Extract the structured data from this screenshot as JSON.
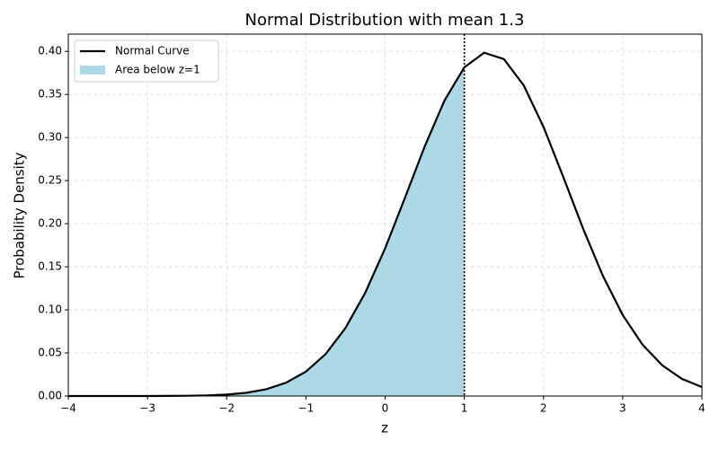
{
  "chart_data": {
    "type": "line",
    "title": "Normal Distribution with mean 1.3",
    "xlabel": "z",
    "ylabel": "Probability Density",
    "xlim": [
      -4,
      4
    ],
    "ylim": [
      0,
      0.42
    ],
    "xticks": [
      {
        "value": -4,
        "label": "−4"
      },
      {
        "value": -3,
        "label": "−3"
      },
      {
        "value": -2,
        "label": "−2"
      },
      {
        "value": -1,
        "label": "−1"
      },
      0,
      1,
      2,
      3,
      4
    ],
    "yticks": [
      {
        "value": 0,
        "label": "0.00"
      },
      {
        "value": 0.05,
        "label": "0.05"
      },
      {
        "value": 0.1,
        "label": "0.10"
      },
      {
        "value": 0.15,
        "label": "0.15"
      },
      {
        "value": 0.2,
        "label": "0.20"
      },
      {
        "value": 0.25,
        "label": "0.25"
      },
      {
        "value": 0.3,
        "label": "0.30"
      },
      {
        "value": 0.35,
        "label": "0.35"
      },
      {
        "value": 0.4,
        "label": "0.40"
      }
    ],
    "grid": true,
    "legend": "upper left",
    "vline_x": 1,
    "series": [
      {
        "name": "Normal Curve",
        "color": "#000000",
        "kind": "line",
        "x": [
          -4,
          -3.75,
          -3.5,
          -3.25,
          -3,
          -2.75,
          -2.5,
          -2.25,
          -2,
          -1.75,
          -1.5,
          -1.25,
          -1,
          -0.75,
          -0.5,
          -0.25,
          0,
          0.25,
          0.5,
          0.75,
          1,
          1.25,
          1.5,
          1.75,
          2,
          2.25,
          2.5,
          2.75,
          3,
          3.25,
          3.5,
          3.75,
          4
        ],
        "values": [
          0.0,
          0.0,
          0.0,
          0.0,
          0.0,
          0.0001,
          0.0003,
          0.0007,
          0.0017,
          0.0038,
          0.0079,
          0.0155,
          0.0283,
          0.0488,
          0.079,
          0.12,
          0.1714,
          0.2299,
          0.2897,
          0.343,
          0.3814,
          0.3984,
          0.391,
          0.3605,
          0.3123,
          0.2541,
          0.1942,
          0.1394,
          0.094,
          0.0596,
          0.0355,
          0.0198,
          0.0104
        ]
      },
      {
        "name": "Area below z=1",
        "color": "#add8e6",
        "kind": "area",
        "x": [
          -4,
          -3.75,
          -3.5,
          -3.25,
          -3,
          -2.75,
          -2.5,
          -2.25,
          -2,
          -1.75,
          -1.5,
          -1.25,
          -1,
          -0.75,
          -0.5,
          -0.25,
          0,
          0.25,
          0.5,
          0.75,
          1
        ],
        "values": [
          0.0,
          0.0,
          0.0,
          0.0,
          0.0,
          0.0001,
          0.0003,
          0.0007,
          0.0017,
          0.0038,
          0.0079,
          0.0155,
          0.0283,
          0.0488,
          0.079,
          0.12,
          0.1714,
          0.2299,
          0.2897,
          0.343,
          0.3814
        ]
      }
    ]
  }
}
